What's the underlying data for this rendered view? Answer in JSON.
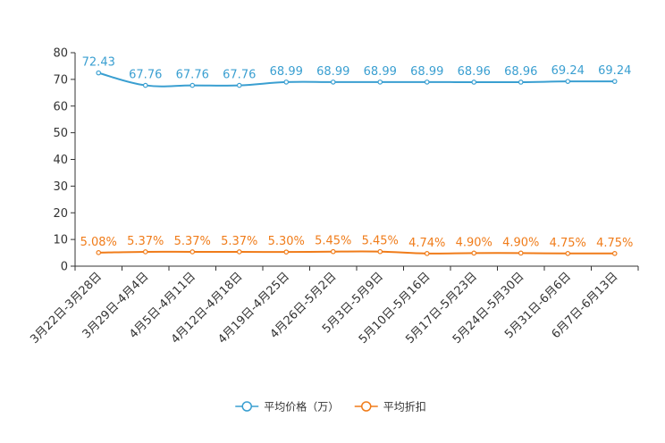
{
  "chart_data": {
    "type": "line",
    "title": "",
    "xlabel": "",
    "ylabel": "",
    "ylim": [
      0,
      80
    ],
    "yticks": [
      0,
      10,
      20,
      30,
      40,
      50,
      60,
      70,
      80
    ],
    "grid": false,
    "legend_position": "bottom-center",
    "categories": [
      "3月22日-3月28日",
      "3月29日-4月4日",
      "4月5日-4月11日",
      "4月12日-4月18日",
      "4月19日-4月25日",
      "4月26日-5月2日",
      "5月3日-5月9日",
      "5月10日-5月16日",
      "5月17日-5月23日",
      "5月24日-5月30日",
      "5月31日-6月6日",
      "6月7日-6月13日"
    ],
    "series": [
      {
        "name": "平均价格（万）",
        "color": "#3a9fd1",
        "values": [
          72.43,
          67.76,
          67.76,
          67.76,
          68.99,
          68.99,
          68.99,
          68.99,
          68.96,
          68.96,
          69.24,
          69.24
        ],
        "labels": [
          "72.43",
          "67.76",
          "67.76",
          "67.76",
          "68.99",
          "68.99",
          "68.99",
          "68.99",
          "68.96",
          "68.96",
          "69.24",
          "69.24"
        ]
      },
      {
        "name": "平均折扣",
        "color": "#f07c1a",
        "values": [
          5.08,
          5.37,
          5.37,
          5.37,
          5.3,
          5.45,
          5.45,
          4.74,
          4.9,
          4.9,
          4.75,
          4.75
        ],
        "labels": [
          "5.08%",
          "5.37%",
          "5.37%",
          "5.37%",
          "5.30%",
          "5.45%",
          "5.45%",
          "4.74%",
          "4.90%",
          "4.90%",
          "4.75%",
          "4.75%"
        ]
      }
    ]
  }
}
